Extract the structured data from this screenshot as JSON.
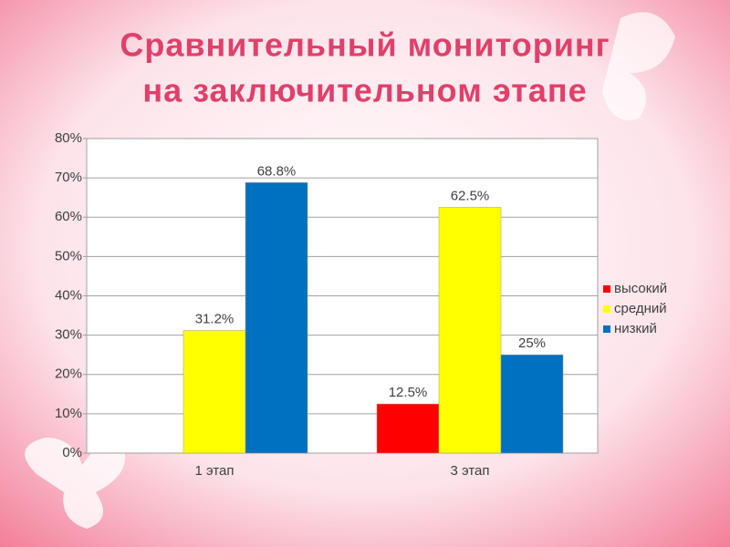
{
  "chart_data": {
    "type": "bar",
    "title": [
      "Сравнительный мониторинг",
      "на заключительном этапе"
    ],
    "categories": [
      "1 этап",
      "3 этап"
    ],
    "series": [
      {
        "name": "высокий",
        "color": "#ff0000",
        "values": [
          null,
          12.5
        ],
        "value_labels": [
          null,
          "12.5%"
        ]
      },
      {
        "name": "средний",
        "color": "#ffff00",
        "values": [
          31.2,
          62.5
        ],
        "value_labels": [
          "31.2%",
          "62.5%"
        ]
      },
      {
        "name": "низкий",
        "color": "#0070c0",
        "values": [
          68.8,
          25
        ],
        "value_labels": [
          "68.8%",
          "25%"
        ]
      }
    ],
    "ylim": [
      0,
      80
    ],
    "yticks": [
      {
        "value": 0,
        "label": "0%"
      },
      {
        "value": 10,
        "label": "10%"
      },
      {
        "value": 20,
        "label": "20%"
      },
      {
        "value": 30,
        "label": "30%"
      },
      {
        "value": 40,
        "label": "40%"
      },
      {
        "value": 50,
        "label": "50%"
      },
      {
        "value": 60,
        "label": "60%"
      },
      {
        "value": 70,
        "label": "70%"
      },
      {
        "value": 80,
        "label": "80%"
      }
    ],
    "grid": true,
    "legend": "right"
  }
}
